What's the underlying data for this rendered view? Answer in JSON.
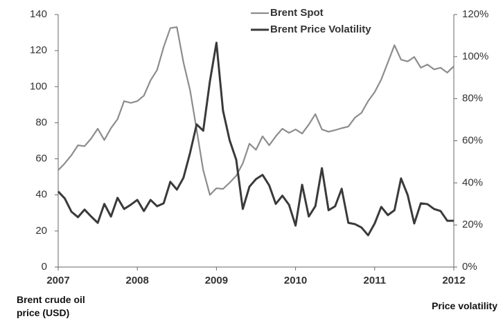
{
  "chart_data": {
    "type": "line",
    "y_label": "Brent crude oil price (USD)",
    "y2_label": "Price volatility",
    "x": [
      2007,
      2007.083,
      2007.167,
      2007.25,
      2007.333,
      2007.417,
      2007.5,
      2007.583,
      2007.667,
      2007.75,
      2007.833,
      2007.917,
      2008,
      2008.083,
      2008.167,
      2008.25,
      2008.333,
      2008.417,
      2008.5,
      2008.583,
      2008.667,
      2008.75,
      2008.833,
      2008.917,
      2009,
      2009.083,
      2009.167,
      2009.25,
      2009.333,
      2009.417,
      2009.5,
      2009.583,
      2009.667,
      2009.75,
      2009.833,
      2009.917,
      2010,
      2010.083,
      2010.167,
      2010.25,
      2010.333,
      2010.417,
      2010.5,
      2010.583,
      2010.667,
      2010.75,
      2010.833,
      2010.917,
      2011,
      2011.083,
      2011.167,
      2011.25,
      2011.333,
      2011.417,
      2011.5,
      2011.583,
      2011.667,
      2011.75,
      2011.833,
      2011.917,
      2012
    ],
    "series": [
      {
        "name": "Brent Spot",
        "color": "#8c8c8c",
        "values": [
          53.7,
          57.5,
          62,
          67.5,
          67,
          71.3,
          76.7,
          70.4,
          77,
          82,
          92,
          91,
          92,
          95,
          103.5,
          109.3,
          122,
          132.5,
          133,
          113.5,
          98,
          76,
          53.7,
          40,
          43.7,
          43.3,
          46.8,
          50.6,
          57.5,
          68.4,
          65,
          72.5,
          67.5,
          72.5,
          76.7,
          74.4,
          76.3,
          74,
          79,
          84.8,
          76.3,
          75,
          75.9,
          77,
          77.9,
          82.8,
          85.5,
          92,
          97,
          104,
          113.5,
          123,
          115,
          114,
          116.5,
          110.5,
          112.3,
          109.6,
          110.5,
          107.8,
          111.3
        ]
      },
      {
        "name": "Brent Price Volatility",
        "color": "#3a3a3a",
        "axis": "y2",
        "values": [
          35.9,
          32.6,
          26.3,
          23.7,
          27.3,
          24,
          21,
          30,
          24,
          32.9,
          27.6,
          29.6,
          31.9,
          26.6,
          31.9,
          28.9,
          30.3,
          40.5,
          36.8,
          42.4,
          54.3,
          67.8,
          64.8,
          88.2,
          106.6,
          74.3,
          60.2,
          51,
          27.6,
          38.2,
          41.8,
          43.8,
          38.8,
          30,
          33.9,
          29.6,
          19.7,
          39.1,
          24,
          28.9,
          47,
          27,
          28.9,
          37.2,
          21,
          20.4,
          18.8,
          15.1,
          20.7,
          28.6,
          24.7,
          27,
          42.1,
          34.2,
          20.7,
          30.3,
          29.9,
          27.6,
          26.6,
          22,
          22
        ]
      }
    ],
    "xlim": [
      2007,
      2012
    ],
    "xticks": [
      2007,
      2008,
      2009,
      2010,
      2011,
      2012
    ],
    "ylim": [
      0,
      140
    ],
    "yticks": [
      0,
      20,
      40,
      60,
      80,
      100,
      120,
      140
    ],
    "y2lim": [
      0,
      120
    ],
    "y2ticks": [
      {
        "value": 0,
        "label": "0%"
      },
      {
        "value": 20,
        "label": "20%"
      },
      {
        "value": 40,
        "label": "40%"
      },
      {
        "value": 60,
        "label": "60%"
      },
      {
        "value": 80,
        "label": "80%"
      },
      {
        "value": 100,
        "label": "100%"
      },
      {
        "value": 120,
        "label": "120%"
      }
    ],
    "legend": "top"
  }
}
